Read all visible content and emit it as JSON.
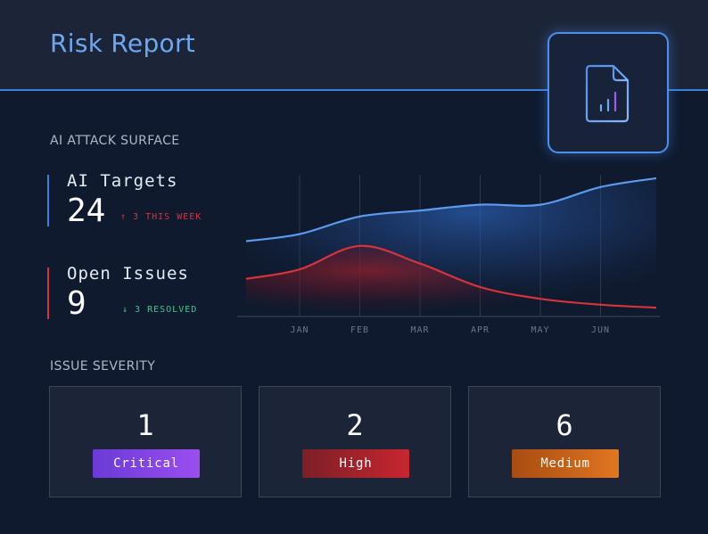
{
  "header": {
    "title": "Risk Report",
    "badge_icon": "file-chart-icon"
  },
  "attack_surface": {
    "section_label": "AI ATTACK SURFACE",
    "targets": {
      "label": "AI Targets",
      "value": "24",
      "delta": "3 THIS WEEK",
      "delta_direction": "up"
    },
    "issues": {
      "label": "Open Issues",
      "value": "9",
      "delta": "3 RESOLVED",
      "delta_direction": "down"
    }
  },
  "chart_data": {
    "type": "area",
    "categories": [
      "JAN",
      "FEB",
      "MAR",
      "APR",
      "MAY",
      "JUN"
    ],
    "series": [
      {
        "name": "AI Targets",
        "color": "#5b9bf0",
        "values": [
          14,
          17,
          18,
          19,
          19,
          22
        ]
      },
      {
        "name": "Open Issues",
        "color": "#d6333b",
        "values": [
          8,
          12,
          9,
          5,
          3,
          2
        ]
      }
    ],
    "ylim": [
      0,
      25
    ],
    "grid": true
  },
  "severity": {
    "section_label": "ISSUE SEVERITY",
    "items": [
      {
        "count": "1",
        "label": "Critical",
        "color": "#8a46e8"
      },
      {
        "count": "2",
        "label": "High",
        "color": "#c8262f"
      },
      {
        "count": "6",
        "label": "Medium",
        "color": "#e07620"
      }
    ]
  }
}
